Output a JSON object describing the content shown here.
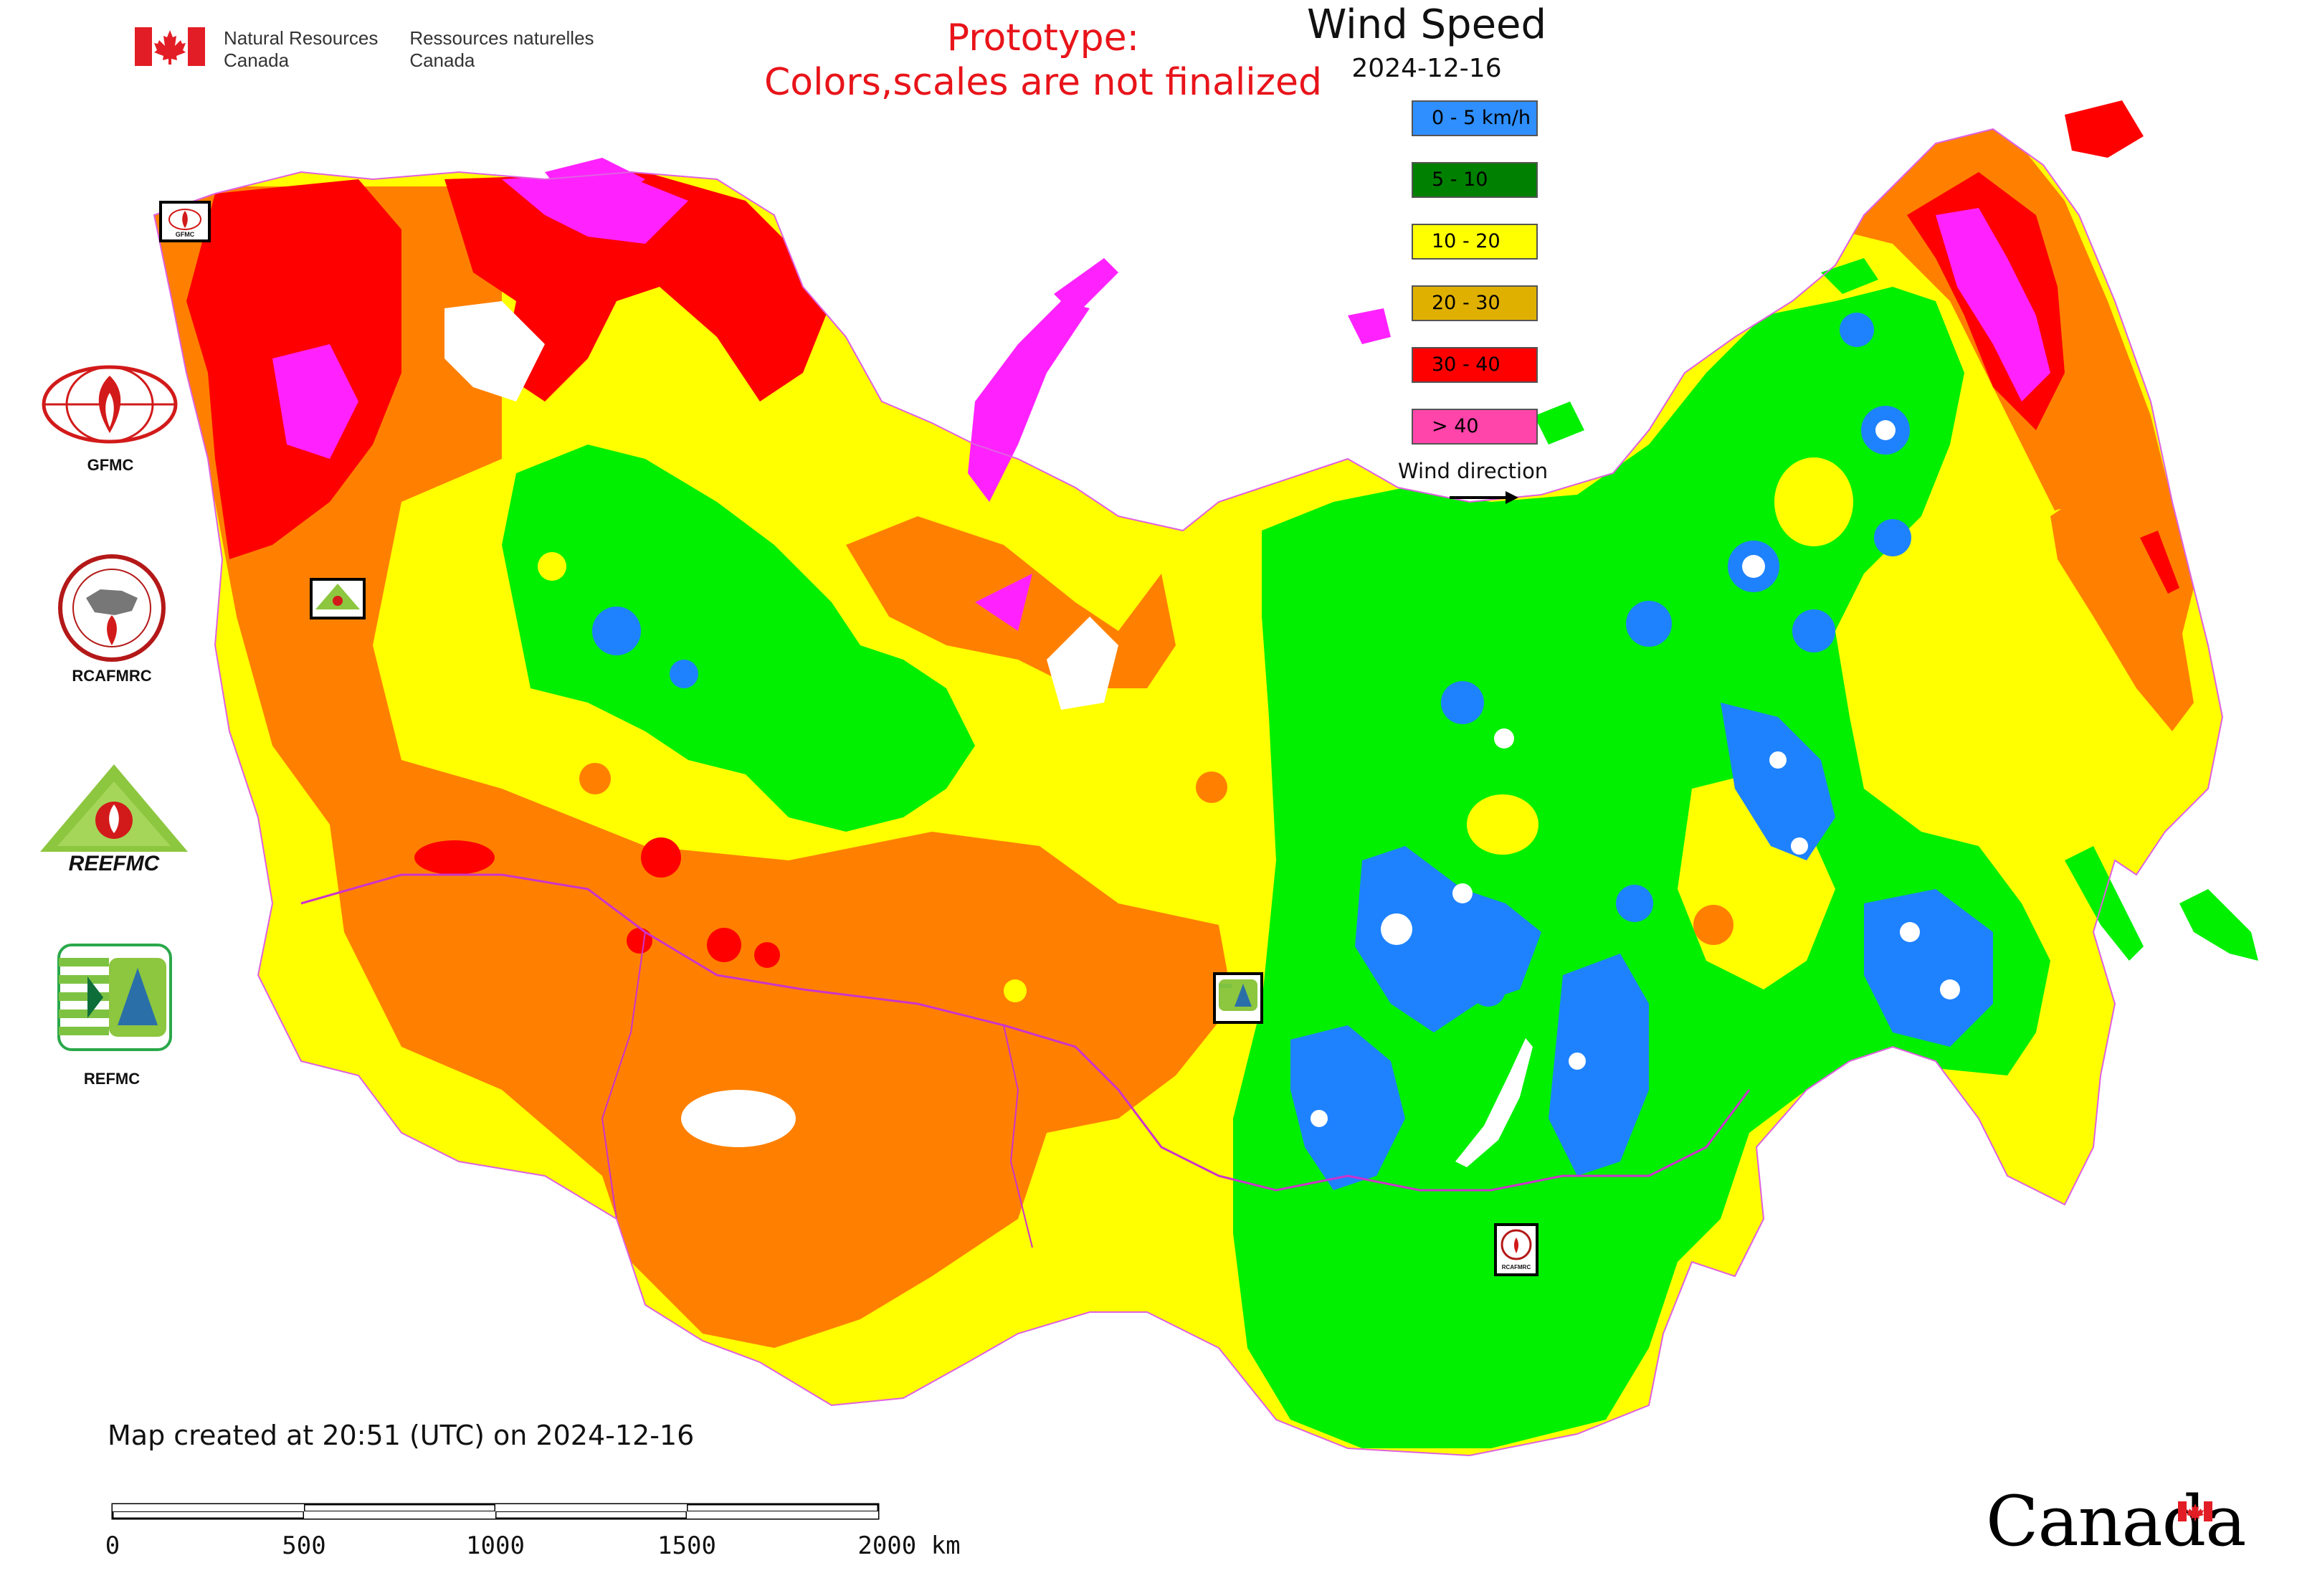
{
  "header": {
    "agency_en": [
      "Natural Resources",
      "Canada"
    ],
    "agency_fr": [
      "Ressources naturelles",
      "Canada"
    ],
    "prototype_line1": "Prototype:",
    "prototype_line2": "Colors,scales are not finalized"
  },
  "legend": {
    "title": "Wind Speed",
    "date": "2024-12-16",
    "items": [
      {
        "label": "0 - 5 km/h",
        "color": "#2f8fff"
      },
      {
        "label": "5 - 10",
        "color": "#008000"
      },
      {
        "label": "10 - 20",
        "color": "#ffff00"
      },
      {
        "label": "20 - 30",
        "color": "#e0b000"
      },
      {
        "label": "30 - 40",
        "color": "#ff0000"
      },
      {
        "label": "> 40",
        "color": "#ff44aa"
      }
    ],
    "wind_direction_label": "Wind direction"
  },
  "map_colors": {
    "calm": "#1e82ff",
    "light": "#00f000",
    "moderate": "#ffff00",
    "fresh": "#ff8000",
    "strong": "#ff0000",
    "gale": "#ff22ff",
    "water": "#ffffff",
    "border": "#cc33cc"
  },
  "logos": {
    "gfmc": "GFMC",
    "rcafmrc": "RCAFMRC",
    "reefmc": "REEFMC",
    "refmc": "REFMC",
    "rcafmrc_badge": "RCAFMRC",
    "gfmc_badge": "GFMC"
  },
  "footer": {
    "created": "Map created at 20:51 (UTC) on 2024-12-16",
    "scale_labels": [
      "0",
      "500",
      "1000",
      "1500",
      "2000 km"
    ],
    "wordmark": "Canada"
  }
}
